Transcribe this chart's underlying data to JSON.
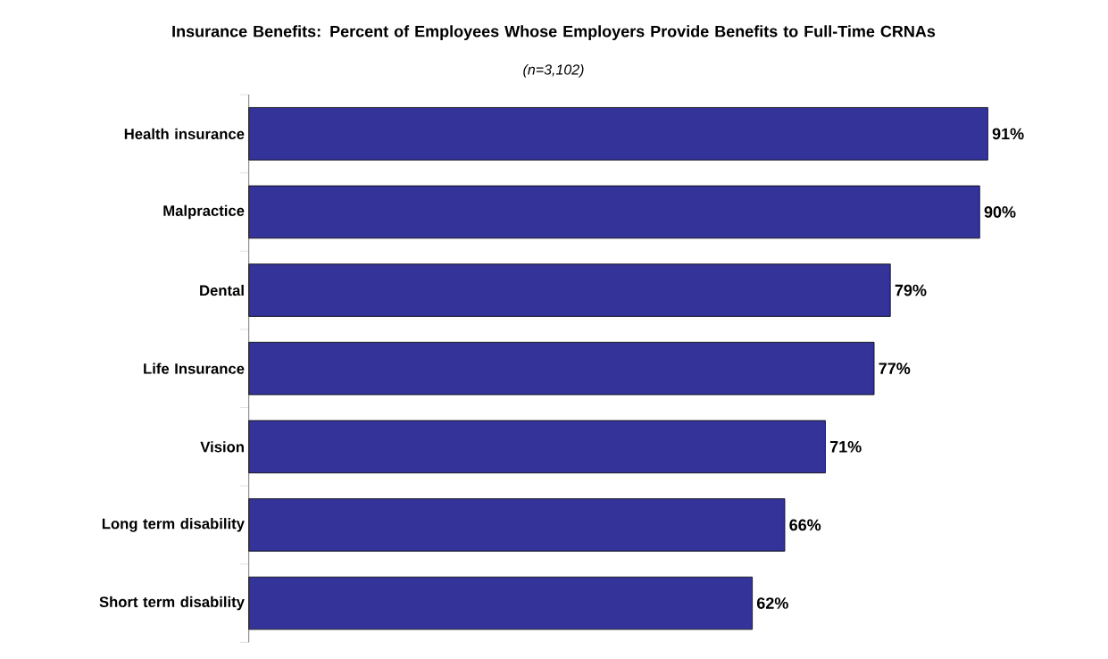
{
  "chart_data": {
    "type": "bar",
    "orientation": "horizontal",
    "title": "Insurance Benefits: Percent of Employees Whose Employers Provide Benefits to Full-Time CRNAs",
    "subtitle": "(n=3,102)",
    "categories": [
      "Health insurance",
      "Malpractice",
      "Dental",
      "Life Insurance",
      "Vision",
      "Long term disability",
      "Short term disability"
    ],
    "values": [
      91,
      90,
      79,
      77,
      71,
      66,
      62
    ],
    "value_labels": [
      "91%",
      "90%",
      "79%",
      "77%",
      "71%",
      "66%",
      "62%"
    ],
    "color": "#333399"
  }
}
